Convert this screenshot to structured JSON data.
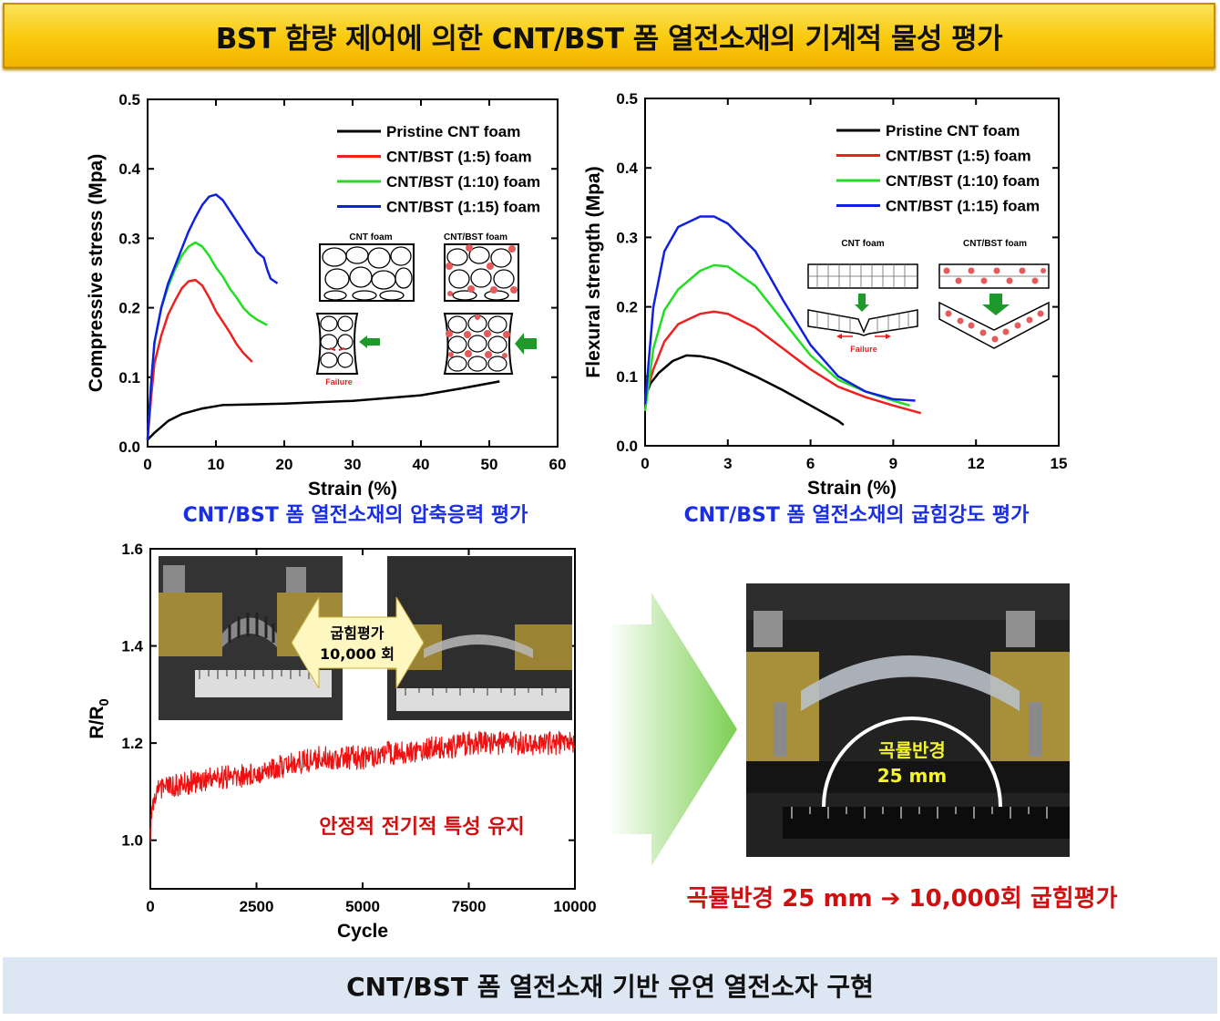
{
  "banner": {
    "title": "BST 함량 제어에 의한 CNT/BST 폼 열전소재의 기계적 물성 평가"
  },
  "colors": {
    "pristine": "#000000",
    "bst5": "#ee2020",
    "bst10": "#22dd22",
    "bst15": "#1020e0",
    "cycle": "#ee1111",
    "caption": "#1a2ee6",
    "result": "#d01010"
  },
  "captions": {
    "compress": "CNT/BST 폼 열전소재의 압축응력 평가",
    "flex": "CNT/BST 폼 열전소재의 굽힘강도 평가"
  },
  "inset1": {
    "cnt": "CNT foam",
    "bst": "CNT/BST foam",
    "failure": "Failure"
  },
  "inset2": {
    "cnt": "CNT foam",
    "bst": "CNT/BST foam",
    "failure": "Failure"
  },
  "photo_arrow": {
    "line1": "굽힘평가",
    "line2": "10,000 회"
  },
  "photo_big": {
    "line1": "곡률반경",
    "line2": "25 mm"
  },
  "cycle_note": "안정적 전기적 특성 유지",
  "result_text": "곡률반경 25 mm ➔ 10,000회 굽힘평가",
  "footer": {
    "text": "CNT/BST 폼 열전소재 기반 유연 열전소자 구현"
  },
  "chart_data": [
    {
      "type": "line",
      "xlabel": "Strain (%)",
      "ylabel": "Compressive stress (Mpa)",
      "xlim": [
        0,
        60
      ],
      "ylim": [
        0,
        0.5
      ],
      "xticks": [
        "0",
        "10",
        "20",
        "30",
        "40",
        "50",
        "60"
      ],
      "yticks": [
        "0.0",
        "0.1",
        "0.2",
        "0.3",
        "0.4",
        "0.5"
      ],
      "legend_position": "top-right",
      "series": [
        {
          "name": "Pristine CNT foam",
          "color": "#000000",
          "x": [
            0,
            1,
            3,
            5,
            8,
            11,
            20,
            30,
            40,
            46,
            51.5
          ],
          "y": [
            0.01,
            0.02,
            0.037,
            0.047,
            0.055,
            0.06,
            0.062,
            0.066,
            0.074,
            0.084,
            0.094
          ]
        },
        {
          "name": "CNT/BST (1:5) foam",
          "color": "#ee2020",
          "x": [
            0,
            0.5,
            1,
            2,
            3,
            4,
            5,
            6,
            7,
            8,
            9,
            10,
            11,
            12,
            13,
            14,
            15.3
          ],
          "y": [
            0.01,
            0.07,
            0.12,
            0.16,
            0.19,
            0.21,
            0.228,
            0.238,
            0.24,
            0.232,
            0.215,
            0.195,
            0.18,
            0.165,
            0.148,
            0.135,
            0.122
          ]
        },
        {
          "name": "CNT/BST (1:10) foam",
          "color": "#22dd22",
          "x": [
            0,
            0.5,
            1,
            2,
            3,
            4,
            5,
            6,
            7,
            8,
            9,
            10,
            11,
            12,
            13,
            14,
            15,
            16,
            17.5
          ],
          "y": [
            0.01,
            0.09,
            0.15,
            0.2,
            0.23,
            0.255,
            0.275,
            0.288,
            0.294,
            0.288,
            0.275,
            0.258,
            0.245,
            0.228,
            0.215,
            0.2,
            0.19,
            0.183,
            0.175
          ]
        },
        {
          "name": "CNT/BST (1:15) foam",
          "color": "#1020e0",
          "x": [
            0,
            0.5,
            1,
            2,
            3,
            4,
            5,
            6,
            7,
            8,
            9,
            10,
            11,
            12,
            13,
            14,
            15,
            16,
            17,
            17.5,
            18,
            19
          ],
          "y": [
            0.01,
            0.09,
            0.15,
            0.2,
            0.235,
            0.26,
            0.285,
            0.31,
            0.33,
            0.348,
            0.36,
            0.363,
            0.355,
            0.34,
            0.325,
            0.31,
            0.295,
            0.28,
            0.272,
            0.255,
            0.242,
            0.235
          ]
        }
      ]
    },
    {
      "type": "line",
      "xlabel": "Strain (%)",
      "ylabel": "Flexural strength (Mpa)",
      "xlim": [
        0,
        15
      ],
      "ylim": [
        0,
        0.5
      ],
      "xticks": [
        "0",
        "3",
        "6",
        "9",
        "12",
        "15"
      ],
      "yticks": [
        "0.0",
        "0.1",
        "0.2",
        "0.3",
        "0.4",
        "0.5"
      ],
      "legend_position": "top-right",
      "series": [
        {
          "name": "Pristine CNT foam",
          "color": "#000000",
          "x": [
            0,
            0.2,
            0.5,
            1,
            1.5,
            2,
            2.5,
            3,
            4,
            5,
            6,
            7,
            7.2
          ],
          "y": [
            0.07,
            0.09,
            0.105,
            0.122,
            0.13,
            0.129,
            0.125,
            0.118,
            0.1,
            0.08,
            0.058,
            0.036,
            0.03
          ]
        },
        {
          "name": "CNT/BST (1:5) foam",
          "color": "#ee2020",
          "x": [
            0,
            0.3,
            0.7,
            1.2,
            2,
            2.5,
            3,
            4,
            5,
            6,
            7,
            8,
            9,
            10
          ],
          "y": [
            0.07,
            0.11,
            0.15,
            0.175,
            0.19,
            0.193,
            0.19,
            0.17,
            0.14,
            0.11,
            0.085,
            0.07,
            0.058,
            0.047
          ]
        },
        {
          "name": "CNT/BST (1:10) foam",
          "color": "#22dd22",
          "x": [
            0,
            0.3,
            0.7,
            1.2,
            2,
            2.5,
            3,
            4,
            5,
            6,
            7,
            8,
            9,
            9.6
          ],
          "y": [
            0.05,
            0.14,
            0.195,
            0.225,
            0.252,
            0.26,
            0.258,
            0.23,
            0.18,
            0.13,
            0.095,
            0.078,
            0.065,
            0.058
          ]
        },
        {
          "name": "CNT/BST (1:15) foam",
          "color": "#1020e0",
          "x": [
            0,
            0.3,
            0.7,
            1.2,
            2,
            2.5,
            3,
            4,
            5,
            6,
            7,
            8,
            9,
            9.8
          ],
          "y": [
            0.06,
            0.2,
            0.28,
            0.315,
            0.33,
            0.33,
            0.32,
            0.28,
            0.21,
            0.145,
            0.1,
            0.078,
            0.067,
            0.065
          ]
        }
      ]
    },
    {
      "type": "line",
      "xlabel": "Cycle",
      "ylabel": "R/R0",
      "xlim": [
        0,
        10000
      ],
      "ylim": [
        0.9,
        1.6
      ],
      "xticks": [
        "0",
        "2500",
        "5000",
        "7500",
        "10000"
      ],
      "yticks": [
        "1.0",
        "1.2",
        "1.4",
        "1.6"
      ],
      "series": [
        {
          "name": "",
          "color": "#ee1111",
          "x": [
            0,
            50,
            200,
            500,
            1000,
            1500,
            2000,
            2500,
            3000,
            3500,
            4000,
            4500,
            5000,
            5500,
            6000,
            6500,
            7000,
            7500,
            8000,
            8500,
            9000,
            9500,
            10000
          ],
          "y": [
            1.0,
            1.08,
            1.1,
            1.11,
            1.12,
            1.13,
            1.13,
            1.14,
            1.15,
            1.16,
            1.17,
            1.17,
            1.17,
            1.18,
            1.18,
            1.19,
            1.19,
            1.2,
            1.2,
            1.2,
            1.2,
            1.2,
            1.2
          ]
        }
      ]
    }
  ]
}
